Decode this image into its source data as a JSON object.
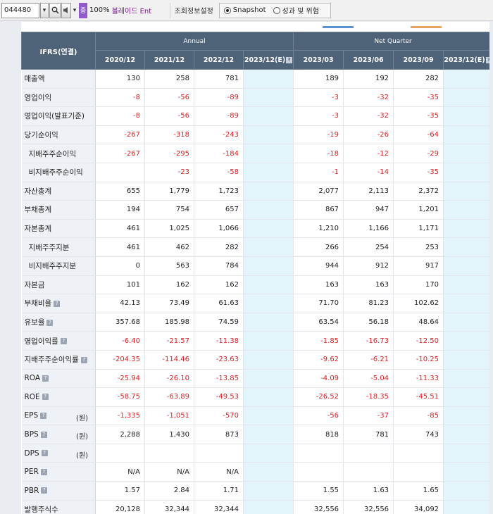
{
  "toolbar": {
    "code": "044480",
    "jong_label": "종",
    "ratio": "100%",
    "stock_name": "블레이드 Ent",
    "settings_label": "조회정보설정",
    "radio_options": [
      {
        "label": "Snapshot",
        "selected": true
      },
      {
        "label": "성과 및 위험",
        "selected": false
      }
    ]
  },
  "table": {
    "ifrs_header": "IFRS(연결)",
    "annual_header": "Annual",
    "quarter_header": "Net Quarter",
    "columns": [
      "2020/12",
      "2021/12",
      "2022/12",
      "2023/12(E)",
      "2023/03",
      "2023/06",
      "2023/09",
      "2023/12(E)"
    ],
    "estimate_columns": [
      3,
      7
    ],
    "rows": [
      {
        "label": "매출액",
        "sub": false,
        "info": false,
        "unit": "",
        "values": [
          "130",
          "258",
          "781",
          "",
          "189",
          "192",
          "282",
          ""
        ]
      },
      {
        "label": "영업이익",
        "sub": false,
        "info": false,
        "unit": "",
        "values": [
          "-8",
          "-56",
          "-89",
          "",
          "-3",
          "-32",
          "-35",
          ""
        ]
      },
      {
        "label": "영업이익(발표기준)",
        "sub": false,
        "info": false,
        "unit": "",
        "values": [
          "-8",
          "-56",
          "-89",
          "",
          "-3",
          "-32",
          "-35",
          ""
        ]
      },
      {
        "label": "당기순이익",
        "sub": false,
        "info": false,
        "unit": "",
        "values": [
          "-267",
          "-318",
          "-243",
          "",
          "-19",
          "-26",
          "-64",
          ""
        ]
      },
      {
        "label": "지배주주순이익",
        "sub": true,
        "info": false,
        "unit": "",
        "values": [
          "-267",
          "-295",
          "-184",
          "",
          "-18",
          "-12",
          "-29",
          ""
        ]
      },
      {
        "label": "비지배주주순이익",
        "sub": true,
        "info": false,
        "unit": "",
        "values": [
          "",
          "-23",
          "-58",
          "",
          "-1",
          "-14",
          "-35",
          ""
        ]
      },
      {
        "label": "자산총계",
        "sub": false,
        "info": false,
        "unit": "",
        "values": [
          "655",
          "1,779",
          "1,723",
          "",
          "2,077",
          "2,113",
          "2,372",
          ""
        ]
      },
      {
        "label": "부채총계",
        "sub": false,
        "info": false,
        "unit": "",
        "values": [
          "194",
          "754",
          "657",
          "",
          "867",
          "947",
          "1,201",
          ""
        ]
      },
      {
        "label": "자본총계",
        "sub": false,
        "info": false,
        "unit": "",
        "values": [
          "461",
          "1,025",
          "1,066",
          "",
          "1,210",
          "1,166",
          "1,171",
          ""
        ]
      },
      {
        "label": "지배주주지분",
        "sub": true,
        "info": false,
        "unit": "",
        "values": [
          "461",
          "462",
          "282",
          "",
          "266",
          "254",
          "253",
          ""
        ]
      },
      {
        "label": "비지배주주지분",
        "sub": true,
        "info": false,
        "unit": "",
        "values": [
          "0",
          "563",
          "784",
          "",
          "944",
          "912",
          "917",
          ""
        ]
      },
      {
        "label": "자본금",
        "sub": false,
        "info": false,
        "unit": "",
        "values": [
          "101",
          "162",
          "162",
          "",
          "163",
          "163",
          "170",
          ""
        ]
      },
      {
        "label": "부채비율",
        "sub": false,
        "info": true,
        "unit": "",
        "values": [
          "42.13",
          "73.49",
          "61.63",
          "",
          "71.70",
          "81.23",
          "102.62",
          ""
        ]
      },
      {
        "label": "유보율",
        "sub": false,
        "info": true,
        "unit": "",
        "values": [
          "357.68",
          "185.98",
          "74.59",
          "",
          "63.54",
          "56.18",
          "48.64",
          ""
        ]
      },
      {
        "label": "영업이익률",
        "sub": false,
        "info": true,
        "unit": "",
        "values": [
          "-6.40",
          "-21.57",
          "-11.38",
          "",
          "-1.85",
          "-16.73",
          "-12.50",
          ""
        ]
      },
      {
        "label": "지배주주순이익률",
        "sub": false,
        "info": true,
        "unit": "",
        "values": [
          "-204.35",
          "-114.46",
          "-23.63",
          "",
          "-9.62",
          "-6.21",
          "-10.25",
          ""
        ]
      },
      {
        "label": "ROA",
        "sub": false,
        "info": true,
        "unit": "",
        "values": [
          "-25.94",
          "-26.10",
          "-13.85",
          "",
          "-4.09",
          "-5.04",
          "-11.33",
          ""
        ]
      },
      {
        "label": "ROE",
        "sub": false,
        "info": true,
        "unit": "",
        "values": [
          "-58.75",
          "-63.89",
          "-49.53",
          "",
          "-26.52",
          "-18.35",
          "-45.51",
          ""
        ]
      },
      {
        "label": "EPS",
        "sub": false,
        "info": true,
        "unit": "(원)",
        "values": [
          "-1,335",
          "-1,051",
          "-570",
          "",
          "-56",
          "-37",
          "-85",
          ""
        ]
      },
      {
        "label": "BPS",
        "sub": false,
        "info": true,
        "unit": "(원)",
        "values": [
          "2,288",
          "1,430",
          "873",
          "",
          "818",
          "781",
          "743",
          ""
        ]
      },
      {
        "label": "DPS",
        "sub": false,
        "info": true,
        "unit": "(원)",
        "values": [
          "",
          "",
          "",
          "",
          "",
          "",
          "",
          ""
        ]
      },
      {
        "label": "PER",
        "sub": false,
        "info": true,
        "unit": "",
        "values": [
          "N/A",
          "N/A",
          "N/A",
          "",
          "",
          "",
          "",
          ""
        ]
      },
      {
        "label": "PBR",
        "sub": false,
        "info": true,
        "unit": "",
        "values": [
          "1.57",
          "2.84",
          "1.71",
          "",
          "1.55",
          "1.63",
          "1.65",
          ""
        ]
      },
      {
        "label": "발행주식수",
        "sub": false,
        "info": false,
        "unit": "",
        "values": [
          "20,128",
          "32,344",
          "32,344",
          "",
          "32,556",
          "32,556",
          "34,092",
          ""
        ]
      }
    ]
  },
  "colors": {
    "header_bg": "#4e6278",
    "label_bg": "#eef1f5",
    "estimate_bg": "#e4f4fb",
    "negative": "#e02020"
  }
}
